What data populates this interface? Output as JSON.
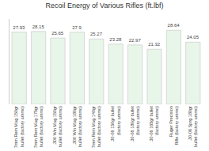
{
  "chart_data": {
    "type": "bar",
    "title": "Recoil Energy of Various Rifles (ft.lbf)",
    "categories": [
      "7mm Rem Mag 150gr\nbullet (factory ammo)",
      "7mm Rem Mag 175gr\nbullet (factory ammo)",
      ".300 Win Mag 150gr\nbullet (factory ammo)",
      ".300 Win Mag 180gr\nbullet (factory ammo)",
      "7mm Rem Mag 140gr\nbullet (factory ammo)",
      ".30-06 150gr bullet\n(factory ammo)",
      ".30-06 180gr bullet\n(factory ammo)",
      ".30-06 165gr bullet\n(factory ammo)",
      "Ruger Precision\nRifle (factory ammo)",
      ".30-06 Sprg 180gr\nbullet (factory ammo)"
    ],
    "values": [
      27.93,
      28.15,
      25.65,
      27.9,
      25.27,
      23.28,
      22.97,
      21.32,
      28.64,
      24.05
    ],
    "color": "#e8f5e9",
    "ylim": [
      0,
      33
    ],
    "yticks": [],
    "grid": false,
    "data_labels": true,
    "tick_labels": "x"
  }
}
